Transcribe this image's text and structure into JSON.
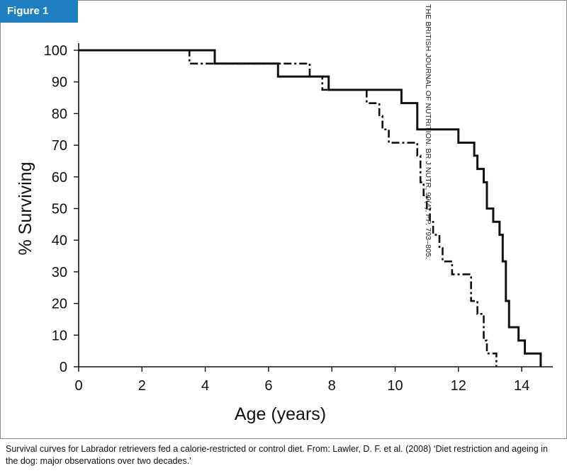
{
  "figure_label": "Figure 1",
  "source_credit": "THE BRITISH JOURNAL OF NUTRITION. BR J NUTR, 99(4), PP. 793–805.",
  "caption": "Survival curves for Labrador retrievers fed a calorie-restricted or control diet. From: Lawler, D. F. et al. (2008) ‘Diet restriction and ageing in the dog: major observations over two decades.’",
  "chart_data": {
    "type": "line",
    "xlabel": "Age (years)",
    "ylabel": "% Surviving",
    "xlim": [
      0,
      15
    ],
    "ylim": [
      0,
      100
    ],
    "xticks": [
      0,
      2,
      4,
      6,
      8,
      10,
      12,
      14
    ],
    "yticks": [
      0,
      10,
      20,
      30,
      40,
      50,
      60,
      70,
      80,
      90,
      100
    ],
    "grid": false,
    "legend": "none",
    "step": true,
    "series": [
      {
        "style": "solid",
        "x": [
          0,
          4.3,
          6.3,
          7.9,
          10.2,
          10.7,
          12.0,
          12.5,
          12.6,
          12.8,
          12.9,
          13.1,
          13.3,
          13.4,
          13.5,
          13.6,
          13.9,
          14.1,
          14.6
        ],
        "y": [
          100,
          95.8,
          91.7,
          87.5,
          83.3,
          75.0,
          70.8,
          66.7,
          62.5,
          58.3,
          50.0,
          45.8,
          41.7,
          33.3,
          20.8,
          12.5,
          8.3,
          4.2,
          0
        ]
      },
      {
        "style": "dash-dot",
        "x": [
          0,
          3.5,
          7.3,
          7.7,
          9.1,
          9.5,
          9.6,
          9.8,
          10.0,
          10.7,
          10.8,
          10.9,
          11.0,
          11.1,
          11.2,
          11.4,
          11.5,
          11.6,
          11.8,
          12.0,
          12.4,
          12.6,
          12.8,
          12.9,
          13.2
        ],
        "y": [
          100,
          95.8,
          91.7,
          87.5,
          83.3,
          79.2,
          75.0,
          70.8,
          70.8,
          66.7,
          58.3,
          54.2,
          50.0,
          45.8,
          41.7,
          37.5,
          33.3,
          33.3,
          29.2,
          29.2,
          20.8,
          16.7,
          8.3,
          4.2,
          0
        ]
      }
    ]
  }
}
